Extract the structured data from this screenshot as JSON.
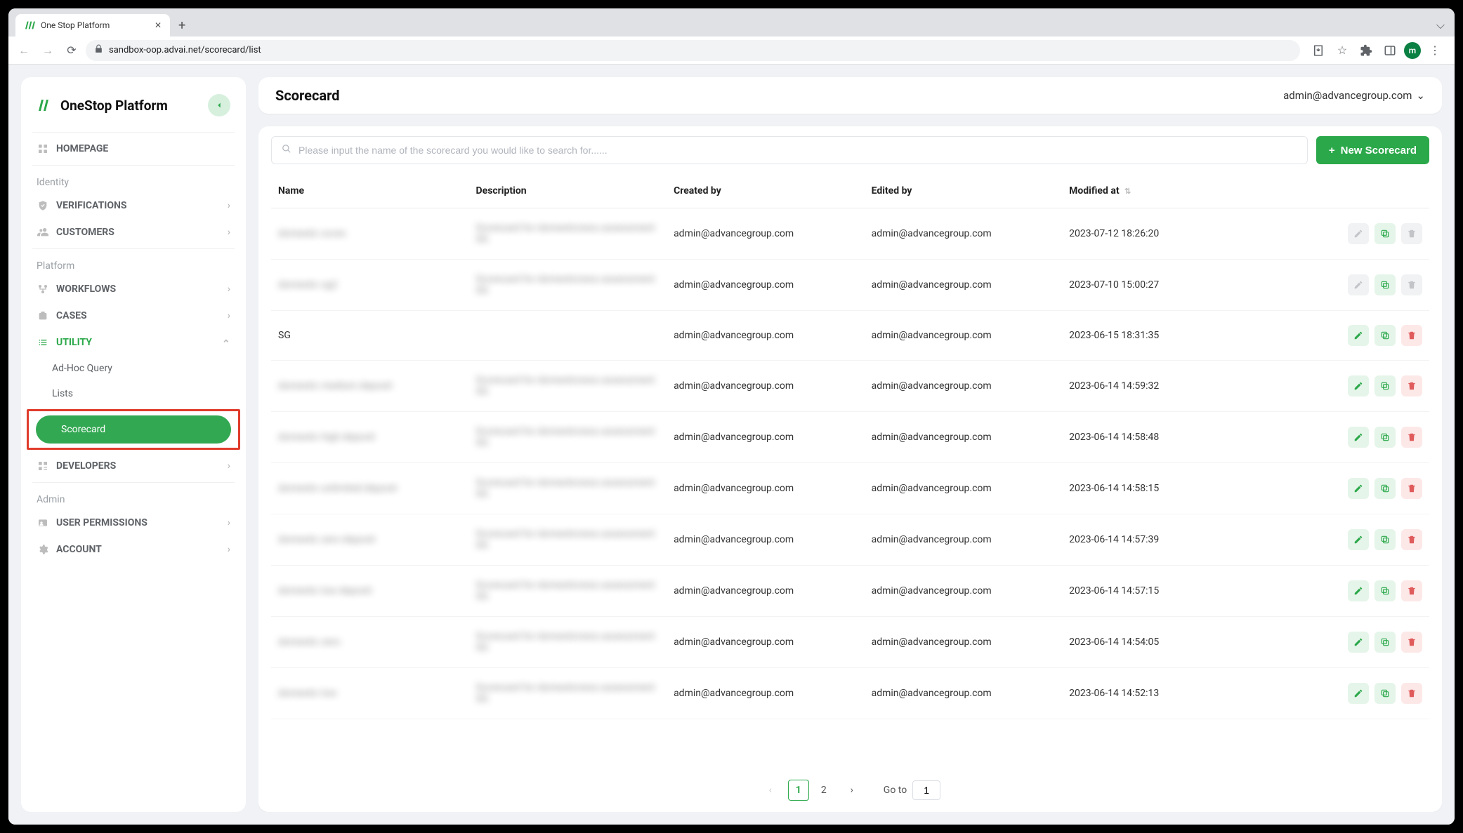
{
  "browser": {
    "tab_title": "One Stop Platform",
    "url": "sandbox-oop.advai.net/scorecard/list",
    "new_tab": "+",
    "avatar_letter": "m"
  },
  "brand": {
    "title": "OneStop Platform"
  },
  "nav": {
    "homepage": "HOMEPAGE",
    "sections": {
      "identity": "Identity",
      "platform": "Platform",
      "admin": "Admin"
    },
    "verifications": "VERIFICATIONS",
    "customers": "CUSTOMERS",
    "workflows": "WORKFLOWS",
    "cases": "CASES",
    "utility": "UTILITY",
    "utility_sub": {
      "adhoc": "Ad-Hoc Query",
      "lists": "Lists",
      "scorecard": "Scorecard"
    },
    "developers": "DEVELOPERS",
    "user_permissions": "USER PERMISSIONS",
    "account": "ACCOUNT"
  },
  "header": {
    "page_title": "Scorecard",
    "user_email": "admin@advancegroup.com"
  },
  "toolbar": {
    "search_placeholder": "Please input the name of the scorecard you would like to search for......",
    "new_button": "New Scorecard"
  },
  "table": {
    "columns": {
      "name": "Name",
      "description": "Description",
      "created_by": "Created by",
      "edited_by": "Edited by",
      "modified_at": "Modified at"
    },
    "rows": [
      {
        "name": "domestic score",
        "name_blur": true,
        "description": "Scorecard for domesticness assessment SG",
        "desc_blur": true,
        "created_by": "admin@advancegroup.com",
        "edited_by": "admin@advancegroup.com",
        "modified_at": "2023-07-12 18:26:20",
        "locked": true
      },
      {
        "name": "domestic sg2",
        "name_blur": true,
        "description": "Scorecard for domesticness assessment SG",
        "desc_blur": true,
        "created_by": "admin@advancegroup.com",
        "edited_by": "admin@advancegroup.com",
        "modified_at": "2023-07-10 15:00:27",
        "locked": true
      },
      {
        "name": "SG",
        "name_blur": false,
        "description": "",
        "desc_blur": false,
        "created_by": "admin@advancegroup.com",
        "edited_by": "admin@advancegroup.com",
        "modified_at": "2023-06-15 18:31:35",
        "locked": false
      },
      {
        "name": "domestic medium deposit",
        "name_blur": true,
        "description": "Scorecard for domesticness assessment SG",
        "desc_blur": true,
        "created_by": "admin@advancegroup.com",
        "edited_by": "admin@advancegroup.com",
        "modified_at": "2023-06-14 14:59:32",
        "locked": false
      },
      {
        "name": "domestic high deposit",
        "name_blur": true,
        "description": "Scorecard for domesticness assessment SG",
        "desc_blur": true,
        "created_by": "admin@advancegroup.com",
        "edited_by": "admin@advancegroup.com",
        "modified_at": "2023-06-14 14:58:48",
        "locked": false
      },
      {
        "name": "domestic unlimited deposit",
        "name_blur": true,
        "description": "Scorecard for domesticness assessment SG",
        "desc_blur": true,
        "created_by": "admin@advancegroup.com",
        "edited_by": "admin@advancegroup.com",
        "modified_at": "2023-06-14 14:58:15",
        "locked": false
      },
      {
        "name": "domestic zero deposit",
        "name_blur": true,
        "description": "Scorecard for domesticness assessment SG",
        "desc_blur": true,
        "created_by": "admin@advancegroup.com",
        "edited_by": "admin@advancegroup.com",
        "modified_at": "2023-06-14 14:57:39",
        "locked": false
      },
      {
        "name": "domestic low deposit",
        "name_blur": true,
        "description": "Scorecard for domesticness assessment SG",
        "desc_blur": true,
        "created_by": "admin@advancegroup.com",
        "edited_by": "admin@advancegroup.com",
        "modified_at": "2023-06-14 14:57:15",
        "locked": false
      },
      {
        "name": "domestic zero",
        "name_blur": true,
        "description": "Scorecard for domesticness assessment SG",
        "desc_blur": true,
        "created_by": "admin@advancegroup.com",
        "edited_by": "admin@advancegroup.com",
        "modified_at": "2023-06-14 14:54:05",
        "locked": false
      },
      {
        "name": "domestic low",
        "name_blur": true,
        "description": "Scorecard for domesticness assessment SG",
        "desc_blur": true,
        "created_by": "admin@advancegroup.com",
        "edited_by": "admin@advancegroup.com",
        "modified_at": "2023-06-14 14:52:13",
        "locked": false
      }
    ]
  },
  "pagination": {
    "pages": [
      "1",
      "2"
    ],
    "active": "1",
    "goto_label": "Go to",
    "goto_value": "1"
  },
  "colors": {
    "accent_green": "#2ba84a",
    "bg_gray": "#f0f2f5",
    "highlight_red": "#e03b2b",
    "danger_light": "#fde8e8",
    "danger_text": "#e05b5b",
    "success_light": "#e5f5e9"
  }
}
